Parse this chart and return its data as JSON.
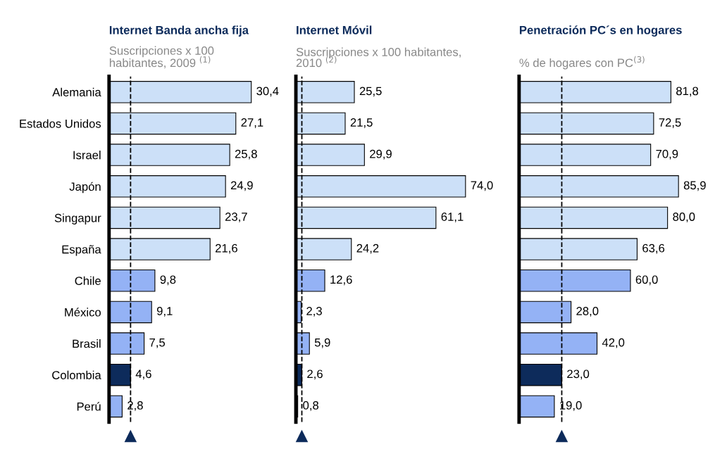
{
  "chart_data": [
    {
      "type": "bar",
      "orientation": "horizontal",
      "title": "Internet Banda ancha fija",
      "subtitle": "Suscripciones x 100\nhabitantes, 2009 $^{(1)}$",
      "categories": [
        "Alemania",
        "Estados Unidos",
        "Israel",
        "Japón",
        "Singapur",
        "España",
        "Chile",
        "México",
        "Brasil",
        "Colombia",
        "Perú"
      ],
      "values": [
        30.4,
        27.1,
        25.8,
        24.9,
        23.7,
        21.6,
        9.8,
        9.1,
        7.5,
        4.6,
        2.8
      ],
      "value_labels": [
        "30,4",
        "27,1",
        "25,8",
        "24,9",
        "23,7",
        "21,6",
        "9,8",
        "9,1",
        "7,5",
        "4,6",
        "2,8"
      ],
      "colors": [
        "#cce0f8",
        "#cce0f8",
        "#cce0f8",
        "#cce0f8",
        "#cce0f8",
        "#cce0f8",
        "#94b2f5",
        "#94b2f5",
        "#94b2f5",
        "#0d2b5b",
        "#94b2f5"
      ],
      "ref_lines": [
        {
          "axis": "x",
          "value": 4.6,
          "line_style": "dashed",
          "color": "#000000"
        }
      ],
      "tick_labels": "y",
      "grid": false,
      "legend": false
    },
    {
      "type": "bar",
      "orientation": "horizontal",
      "title": "Internet Móvil",
      "subtitle": "Suscripciones x 100 habitantes,\n2010 $^{(2)}$",
      "categories": [
        null,
        null,
        null,
        null,
        null,
        null,
        null,
        null,
        null,
        null,
        null
      ],
      "values": [
        25.5,
        21.5,
        29.9,
        74.0,
        61.1,
        24.2,
        12.6,
        2.3,
        5.9,
        2.6,
        0.8
      ],
      "value_labels": [
        "25,5",
        "21,5",
        "29,9",
        "74,0",
        "61,1",
        "24,2",
        "12,6",
        "2,3",
        "5,9",
        "2,6",
        "0,8"
      ],
      "colors": [
        "#cce0f8",
        "#cce0f8",
        "#cce0f8",
        "#cce0f8",
        "#cce0f8",
        "#cce0f8",
        "#94b2f5",
        "#94b2f5",
        "#94b2f5",
        "#0d2b5b",
        "#94b2f5"
      ],
      "ref_lines": [
        {
          "axis": "x",
          "value": 2.6,
          "line_style": "dashed",
          "color": "#000000"
        }
      ],
      "grid": false,
      "legend": false
    },
    {
      "type": "bar",
      "orientation": "horizontal",
      "title": "Penetración PC´s en hogares",
      "subtitle": "% de hogares con PC$^{(3)}$",
      "categories": [
        null,
        null,
        null,
        null,
        null,
        null,
        null,
        null,
        null,
        null,
        null
      ],
      "values": [
        81.8,
        72.5,
        70.9,
        85.9,
        80.0,
        63.6,
        60.0,
        28.0,
        42.0,
        23.0,
        19.0
      ],
      "value_labels": [
        "81,8",
        "72,5",
        "70,9",
        "85,9",
        "80,0",
        "63,6",
        "60,0",
        "28,0",
        "42,0",
        "23,0",
        "19,0"
      ],
      "colors": [
        "#cce0f8",
        "#cce0f8",
        "#cce0f8",
        "#cce0f8",
        "#cce0f8",
        "#cce0f8",
        "#94b2f5",
        "#94b2f5",
        "#94b2f5",
        "#0d2b5b",
        "#94b2f5"
      ],
      "ref_lines": [
        {
          "axis": "x",
          "value": 23.0,
          "line_style": "dashed",
          "color": "#000000"
        }
      ],
      "grid": false,
      "legend": false
    }
  ]
}
